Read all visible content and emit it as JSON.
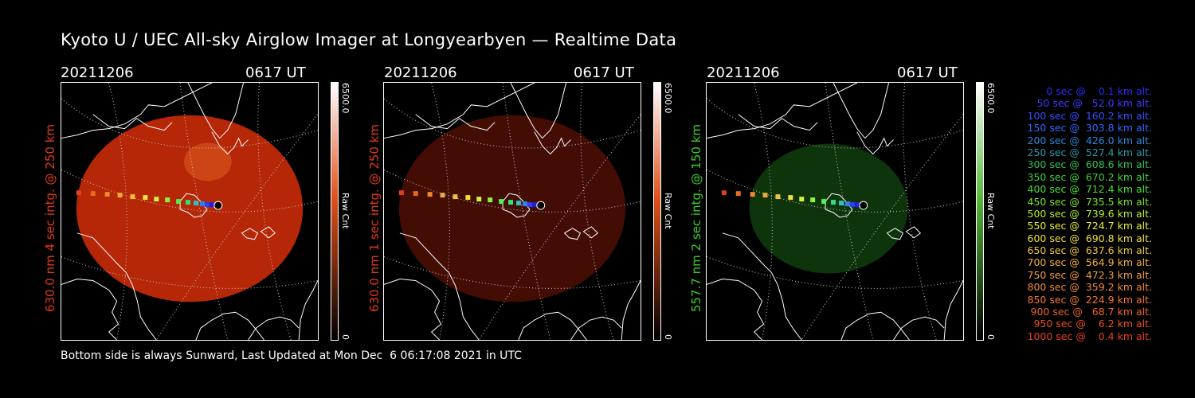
{
  "title": "Kyoto U / UEC All-sky Airglow Imager at Longyearbyen — Realtime Data",
  "footer": "Bottom side is always Sunward, Last Updated at Mon Dec  6 06:17:08 2021 in UTC",
  "panels": [
    {
      "date": "20211206",
      "time": "0617 UT",
      "side_label": "630.0 nm 4 sec intg. @ 250 km",
      "side_color": "#e03a1a",
      "cbar_max": "6500.0",
      "cbar_min": "0",
      "cbar_unit": "Raw Cnt",
      "cbar_top": "#ffffff",
      "cbar_mid": "#e0501a",
      "cbar_bot": "#000000",
      "image_color": "#c42a08",
      "image_opacity": 0.92
    },
    {
      "date": "20211206",
      "time": "0617 UT",
      "side_label": "630.0 nm 1 sec intg. @ 250 km",
      "side_color": "#e03a1a",
      "cbar_max": "6500.0",
      "cbar_min": "0",
      "cbar_unit": "Raw Cnt",
      "cbar_top": "#ffffff",
      "cbar_mid": "#e0501a",
      "cbar_bot": "#000000",
      "image_color": "#4a0e04",
      "image_opacity": 0.9
    },
    {
      "date": "20211206",
      "time": "0617 UT",
      "side_label": "557.7 nm 2 sec intg. @ 150 km",
      "side_color": "#3ccf2a",
      "cbar_max": "6500.0",
      "cbar_min": "0",
      "cbar_unit": "Raw Cnt",
      "cbar_top": "#ffffff",
      "cbar_mid": "#56b83a",
      "cbar_bot": "#000000",
      "image_color": "#0f3a0c",
      "image_opacity": 0.9
    }
  ],
  "trajectory_colors": [
    "#e04020",
    "#e86a20",
    "#f08a30",
    "#f0a840",
    "#f0c040",
    "#f0e040",
    "#d0f040",
    "#90f040",
    "#50f050",
    "#30e080",
    "#30c0c0",
    "#3080f0",
    "#3040f0",
    "#2020e0",
    "#ffffff"
  ],
  "legend": [
    {
      "text": "   0 sec @    0.1 km alt.",
      "color": "#2a2aff"
    },
    {
      "text": "  50 sec @   52.0 km alt.",
      "color": "#3a3aff"
    },
    {
      "text": " 100 sec @  160.2 km alt.",
      "color": "#3050ff"
    },
    {
      "text": " 150 sec @  303.8 km alt.",
      "color": "#3068ff"
    },
    {
      "text": " 200 sec @  426.0 km alt.",
      "color": "#2a88e0"
    },
    {
      "text": " 250 sec @  527.4 km alt.",
      "color": "#2a9aa8"
    },
    {
      "text": " 300 sec @  608.6 km alt.",
      "color": "#34c05a"
    },
    {
      "text": " 350 sec @  670.2 km alt.",
      "color": "#3cd03a"
    },
    {
      "text": " 400 sec @  712.4 km alt.",
      "color": "#46e02a"
    },
    {
      "text": " 450 sec @  735.5 km alt.",
      "color": "#7ae82a"
    },
    {
      "text": " 500 sec @  739.6 km alt.",
      "color": "#b4f02a"
    },
    {
      "text": " 550 sec @  724.7 km alt.",
      "color": "#e6f030"
    },
    {
      "text": " 600 sec @  690.8 km alt.",
      "color": "#f0e040"
    },
    {
      "text": " 650 sec @  637.6 km alt.",
      "color": "#f0c840"
    },
    {
      "text": " 700 sec @  564.9 km alt.",
      "color": "#f0b040"
    },
    {
      "text": " 750 sec @  472.3 km alt.",
      "color": "#f09c40"
    },
    {
      "text": " 800 sec @  359.2 km alt.",
      "color": "#f08a3a"
    },
    {
      "text": " 850 sec @  224.9 km alt.",
      "color": "#ee7830"
    },
    {
      "text": " 900 sec @   68.7 km alt.",
      "color": "#ec6428"
    },
    {
      "text": " 950 sec @    6.2 km alt.",
      "color": "#ea5020"
    },
    {
      "text": "1000 sec @    0.4 km alt.",
      "color": "#e84020"
    }
  ]
}
